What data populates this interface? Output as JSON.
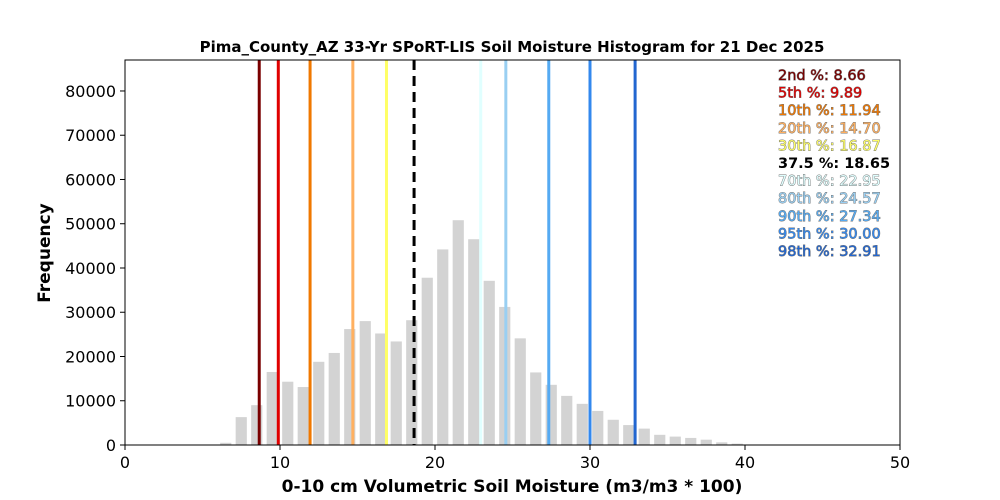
{
  "chart_data": {
    "type": "bar",
    "title": "Pima_County_AZ 33-Yr SPoRT-LIS Soil Moisture Histogram for 21 Dec 2025",
    "xlabel": "0-10 cm Volumetric Soil Moisture (m3/m3 * 100)",
    "ylabel": "Frequency",
    "xlim": [
      0,
      50
    ],
    "ylim": [
      0,
      87000
    ],
    "xticks": [
      "0",
      "10",
      "20",
      "30",
      "40",
      "50"
    ],
    "yticks": [
      "0",
      "10000",
      "20000",
      "30000",
      "40000",
      "50000",
      "60000",
      "70000",
      "80000"
    ],
    "grid": false,
    "bar_color": "#d3d3d3",
    "bins_center": [
      6.5,
      7.5,
      8.5,
      9.5,
      10.5,
      11.5,
      12.5,
      13.5,
      14.5,
      15.5,
      16.5,
      17.5,
      18.5,
      19.5,
      20.5,
      21.5,
      22.5,
      23.5,
      24.5,
      25.5,
      26.5,
      27.5,
      28.5,
      29.5,
      30.5,
      31.5,
      32.5,
      33.5,
      34.5,
      35.5,
      36.5,
      37.5,
      38.5,
      39.5
    ],
    "values": [
      500,
      6300,
      9000,
      16500,
      14300,
      13100,
      18800,
      20800,
      26200,
      28000,
      25200,
      23400,
      28200,
      37800,
      44200,
      50800,
      46500,
      37100,
      31200,
      24100,
      16400,
      13600,
      11100,
      9300,
      7700,
      5700,
      4500,
      3700,
      2300,
      1900,
      1600,
      1200,
      600,
      300
    ],
    "percentiles": [
      {
        "label": "2nd %: 8.66",
        "value": 8.66,
        "color": "#7a0000",
        "dashed": false
      },
      {
        "label": "5th %: 9.89",
        "value": 9.89,
        "color": "#e00000",
        "dashed": false
      },
      {
        "label": "10th %: 11.94",
        "value": 11.94,
        "color": "#f07800",
        "dashed": false
      },
      {
        "label": "20th %: 14.70",
        "value": 14.7,
        "color": "#ffb060",
        "dashed": false
      },
      {
        "label": "30th %: 16.87",
        "value": 16.87,
        "color": "#ffff66",
        "dashed": false
      },
      {
        "label": "37.5 %: 18.65",
        "value": 18.65,
        "color": "#000000",
        "dashed": true
      },
      {
        "label": "70th %: 22.95",
        "value": 22.95,
        "color": "#e0ffff",
        "dashed": false
      },
      {
        "label": "80th %: 24.57",
        "value": 24.57,
        "color": "#99cff2",
        "dashed": false
      },
      {
        "label": "90th %: 27.34",
        "value": 27.34,
        "color": "#55aaf2",
        "dashed": false
      },
      {
        "label": "95th %: 30.00",
        "value": 30.0,
        "color": "#3388ee",
        "dashed": false
      },
      {
        "label": "98th %: 32.91",
        "value": 32.91,
        "color": "#2266d0",
        "dashed": false
      }
    ],
    "legend_position": "top-right"
  }
}
